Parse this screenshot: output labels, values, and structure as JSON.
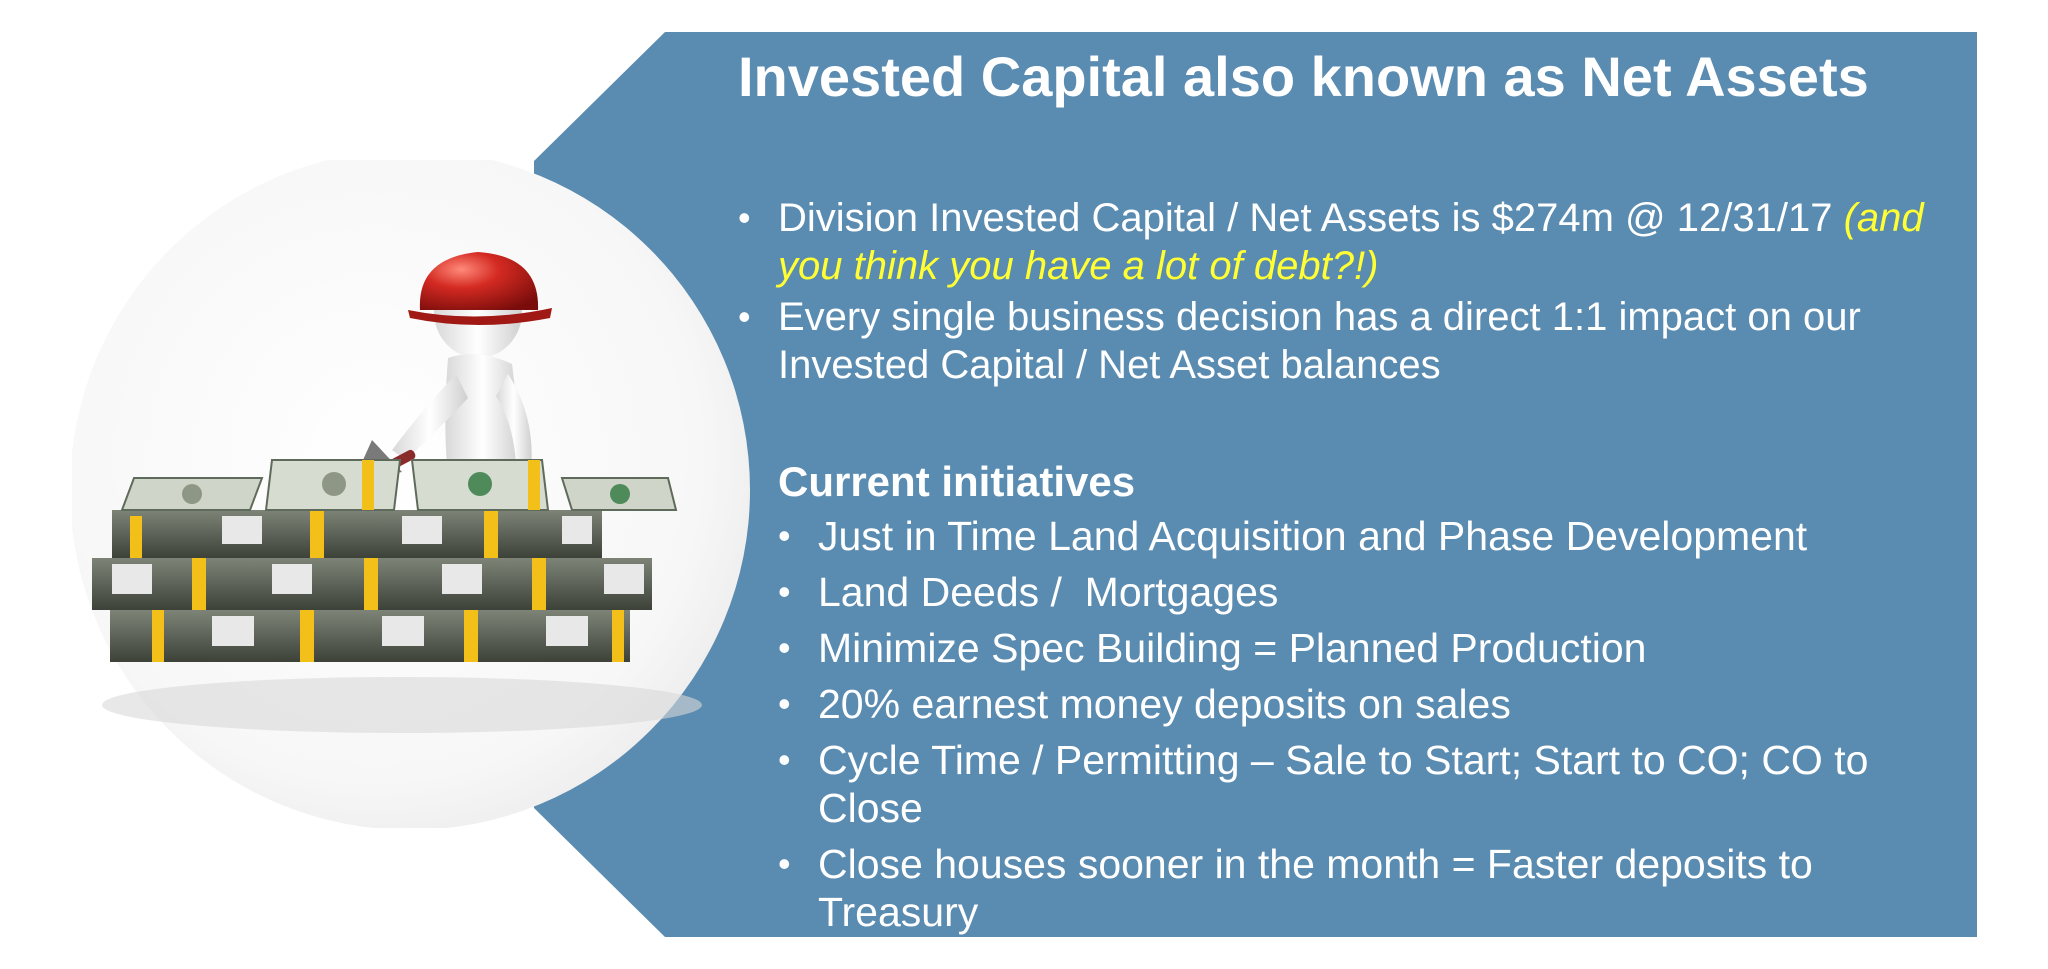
{
  "slide": {
    "title": "Invested Capital also known as Net Assets",
    "intro_bullets": [
      {
        "text": "Division Invested Capital / Net Assets is $274m @ 12/31/17 ",
        "highlight": "(and you think you have a lot of debt?!)"
      },
      {
        "text": "Every single business decision has a direct 1:1 impact on our Invested Capital / Net Asset balances"
      }
    ],
    "initiatives_heading": "Current initiatives",
    "initiatives": [
      "Just in Time Land Acquisition and Phase Development",
      "Land Deeds /  Mortgages",
      "Minimize Spec Building = Planned Production",
      "20% earnest money deposits on sales",
      "Cycle Time / Permitting – Sale to Start; Start to CO; CO to Close",
      "Close houses sooner in the month = Faster deposits to Treasury"
    ],
    "bullet_glyph": "•"
  },
  "illustration": {
    "icon": "construction-worker-building-wall-of-money-icon"
  },
  "colors": {
    "panel": "#5a8bb0",
    "text": "#ffffff",
    "highlight": "#ffff33",
    "helmet": "#c0201e",
    "bill_green": "#5f6b5a",
    "band_yellow": "#f2c019"
  }
}
